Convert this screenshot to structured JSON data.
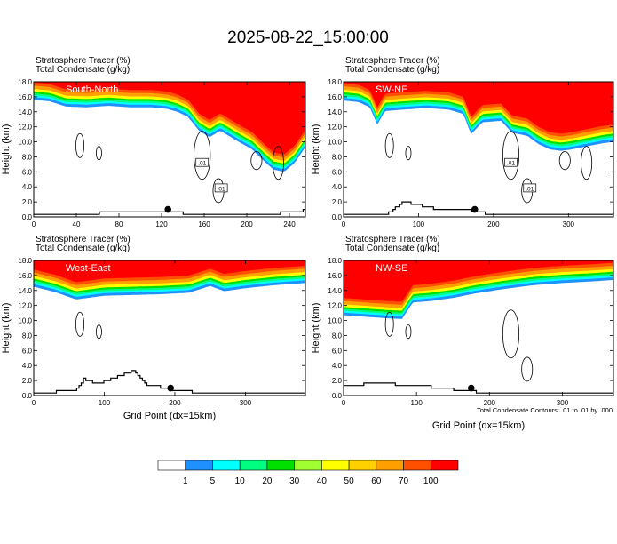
{
  "chart_data": {
    "title": "2025-08-22_15:00:00",
    "footnote": "Total Condensate Contours: .01 to .01 by .000",
    "colorbar": {
      "colors": [
        "#ffffff",
        "#1e90ff",
        "#00ffff",
        "#00ff80",
        "#00e000",
        "#a0ff30",
        "#ffff00",
        "#ffd000",
        "#ffa000",
        "#ff5000",
        "#ff0000"
      ],
      "labels": [
        "1",
        "5",
        "10",
        "20",
        "30",
        "40",
        "50",
        "60",
        "70",
        "100"
      ]
    },
    "panels": [
      {
        "type": "heatmap",
        "name": "South-North",
        "header1": "Stratosphere Tracer   (%)",
        "header2": "Total Condensate   (g/kg)",
        "ylabel": "Height (km)",
        "xlabel": "",
        "xlim": [
          0,
          255
        ],
        "ylim": [
          0,
          18
        ],
        "xticks": [
          "0",
          "40",
          "80",
          "120",
          "160",
          "200",
          "240"
        ],
        "yticks": [
          "0.0",
          "2.0",
          "4.0",
          "6.0",
          "8.0",
          "10.0",
          "12.0",
          "14.0",
          "16.0",
          "18.0"
        ],
        "contour_labels": [
          ".01",
          ".01"
        ],
        "marker_x": 126,
        "tropopause": [
          [
            0,
            15.6
          ],
          [
            15,
            15.4
          ],
          [
            30,
            14.7
          ],
          [
            50,
            14.6
          ],
          [
            70,
            14.8
          ],
          [
            90,
            14.6
          ],
          [
            110,
            14.6
          ],
          [
            125,
            14.4
          ],
          [
            135,
            14.0
          ],
          [
            145,
            13.3
          ],
          [
            155,
            11.5
          ],
          [
            165,
            10.6
          ],
          [
            175,
            11.5
          ],
          [
            190,
            10.2
          ],
          [
            205,
            9.0
          ],
          [
            215,
            7.6
          ],
          [
            225,
            6.3
          ],
          [
            235,
            6.0
          ],
          [
            245,
            7.2
          ],
          [
            255,
            9.3
          ]
        ],
        "terrain": [
          [
            0,
            0.3
          ],
          [
            60,
            0.5
          ],
          [
            100,
            0.6
          ],
          [
            140,
            0.5
          ],
          [
            180,
            0.4
          ],
          [
            230,
            0.5
          ],
          [
            255,
            0.9
          ]
        ]
      },
      {
        "type": "heatmap",
        "name": "SW-NE",
        "header1": "Stratosphere Tracer   (%)",
        "header2": "Total Condensate   (g/kg)",
        "ylabel": "Height (km)",
        "xlabel": "",
        "xlim": [
          0,
          360
        ],
        "ylim": [
          0,
          18
        ],
        "xticks": [
          "0",
          "100",
          "200",
          "300"
        ],
        "yticks": [
          "0.0",
          "2.0",
          "4.0",
          "6.0",
          "8.0",
          "10.0",
          "12.0",
          "14.0",
          "16.0",
          "18.0"
        ],
        "contour_labels": [
          ".01",
          ".01"
        ],
        "marker_x": 175,
        "tropopause": [
          [
            0,
            15.5
          ],
          [
            20,
            15.3
          ],
          [
            35,
            14.6
          ],
          [
            45,
            12.3
          ],
          [
            55,
            14.1
          ],
          [
            80,
            14.3
          ],
          [
            110,
            14.5
          ],
          [
            140,
            14.3
          ],
          [
            160,
            13.7
          ],
          [
            170,
            11.0
          ],
          [
            185,
            12.6
          ],
          [
            210,
            12.8
          ],
          [
            225,
            11.2
          ],
          [
            245,
            10.8
          ],
          [
            260,
            9.7
          ],
          [
            275,
            9.0
          ],
          [
            290,
            8.8
          ],
          [
            305,
            9.0
          ],
          [
            325,
            9.4
          ],
          [
            345,
            9.8
          ],
          [
            360,
            10.0
          ]
        ],
        "terrain": [
          [
            0,
            0.2
          ],
          [
            60,
            0.5
          ],
          [
            80,
            2.0
          ],
          [
            100,
            1.6
          ],
          [
            130,
            0.9
          ],
          [
            160,
            1.0
          ],
          [
            200,
            0.3
          ],
          [
            250,
            0.2
          ],
          [
            300,
            0.3
          ],
          [
            360,
            0.5
          ]
        ]
      },
      {
        "type": "heatmap",
        "name": "West-East",
        "header1": "Stratosphere Tracer   (%)",
        "header2": "Total Condensate   (g/kg)",
        "ylabel": "Height (km)",
        "xlabel": "Grid Point (dx=15km)",
        "xlim": [
          0,
          385
        ],
        "ylim": [
          0,
          18
        ],
        "xticks": [
          "0",
          "100",
          "200",
          "300"
        ],
        "yticks": [
          "0.0",
          "2.0",
          "4.0",
          "6.0",
          "8.0",
          "10.0",
          "12.0",
          "14.0",
          "16.0",
          "18.0"
        ],
        "contour_labels": [],
        "marker_x": 194,
        "tropopause": [
          [
            0,
            14.5
          ],
          [
            30,
            13.8
          ],
          [
            60,
            12.8
          ],
          [
            100,
            13.3
          ],
          [
            140,
            13.4
          ],
          [
            180,
            13.5
          ],
          [
            220,
            13.7
          ],
          [
            250,
            14.6
          ],
          [
            270,
            13.9
          ],
          [
            300,
            14.3
          ],
          [
            340,
            14.7
          ],
          [
            385,
            15.0
          ]
        ],
        "terrain": [
          [
            0,
            0.2
          ],
          [
            40,
            0.6
          ],
          [
            60,
            0.8
          ],
          [
            70,
            2.2
          ],
          [
            90,
            1.5
          ],
          [
            120,
            2.6
          ],
          [
            140,
            3.3
          ],
          [
            160,
            1.5
          ],
          [
            190,
            0.9
          ],
          [
            230,
            0.4
          ],
          [
            300,
            0.2
          ],
          [
            385,
            0.2
          ]
        ]
      },
      {
        "type": "heatmap",
        "name": "NW-SE",
        "header1": "Stratosphere Tracer   (%)",
        "header2": "Total Condensate   (g/kg)",
        "ylabel": "Height (km)",
        "xlabel": "Grid Point (dx=15km)",
        "xlim": [
          0,
          370
        ],
        "ylim": [
          0,
          18
        ],
        "xticks": [
          "0",
          "100",
          "200",
          "300"
        ],
        "yticks": [
          "0.0",
          "2.0",
          "4.0",
          "6.0",
          "8.0",
          "10.0",
          "12.0",
          "14.0",
          "16.0",
          "18.0"
        ],
        "contour_labels": [],
        "marker_x": 175,
        "tropopause": [
          [
            0,
            10.7
          ],
          [
            30,
            10.5
          ],
          [
            60,
            10.3
          ],
          [
            80,
            10.2
          ],
          [
            95,
            12.4
          ],
          [
            120,
            12.6
          ],
          [
            150,
            13.0
          ],
          [
            180,
            13.6
          ],
          [
            220,
            14.2
          ],
          [
            260,
            14.7
          ],
          [
            300,
            15.0
          ],
          [
            340,
            15.2
          ],
          [
            370,
            15.4
          ]
        ],
        "terrain": [
          [
            0,
            1.3
          ],
          [
            40,
            1.6
          ],
          [
            70,
            1.5
          ],
          [
            100,
            1.3
          ],
          [
            130,
            1.1
          ],
          [
            160,
            0.7
          ],
          [
            200,
            0.3
          ],
          [
            260,
            0.2
          ],
          [
            370,
            0.2
          ]
        ]
      }
    ]
  }
}
